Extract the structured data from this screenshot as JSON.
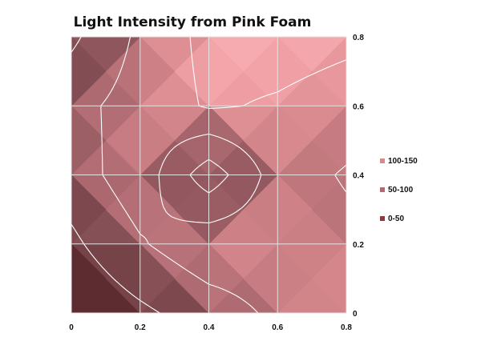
{
  "chart_data": {
    "type": "heatmap",
    "subtype": "surface-contour",
    "title": "Light Intensity from Pink Foam",
    "xlabel": "",
    "ylabel": "",
    "x_ticks": [
      "0",
      "0.2",
      "0.4",
      "0.6",
      "0.8"
    ],
    "y_ticks": [
      "0",
      "0.2",
      "0.4",
      "0.6",
      "0.8"
    ],
    "xlim": [
      0,
      0.8
    ],
    "ylim": [
      0,
      0.8
    ],
    "grid": true,
    "legend_position": "right",
    "legend": [
      {
        "label": "100-150",
        "color": "#d8898c"
      },
      {
        "label": "50-100",
        "color": "#b06a70"
      },
      {
        "label": "0-50",
        "color": "#8f3a40"
      }
    ],
    "x": [
      0,
      0.2,
      0.4,
      0.6,
      0.8
    ],
    "y": [
      0,
      0.2,
      0.4,
      0.6,
      0.8
    ],
    "values": [
      [
        5,
        40,
        75,
        110,
        145
      ],
      [
        40,
        95,
        135,
        130,
        115
      ],
      [
        75,
        130,
        20,
        125,
        95
      ],
      [
        85,
        120,
        155,
        145,
        130
      ],
      [
        40,
        110,
        165,
        170,
        160
      ]
    ],
    "bands": [
      {
        "label": "0-50",
        "min": 0,
        "max": 50
      },
      {
        "label": "50-100",
        "min": 50,
        "max": 100
      },
      {
        "label": "100-150",
        "min": 100,
        "max": 150
      },
      {
        "label": "",
        "min": 150,
        "max": 200
      }
    ],
    "colors": {
      "grid": "#e8e0e0",
      "contour": "#ffffff"
    }
  }
}
